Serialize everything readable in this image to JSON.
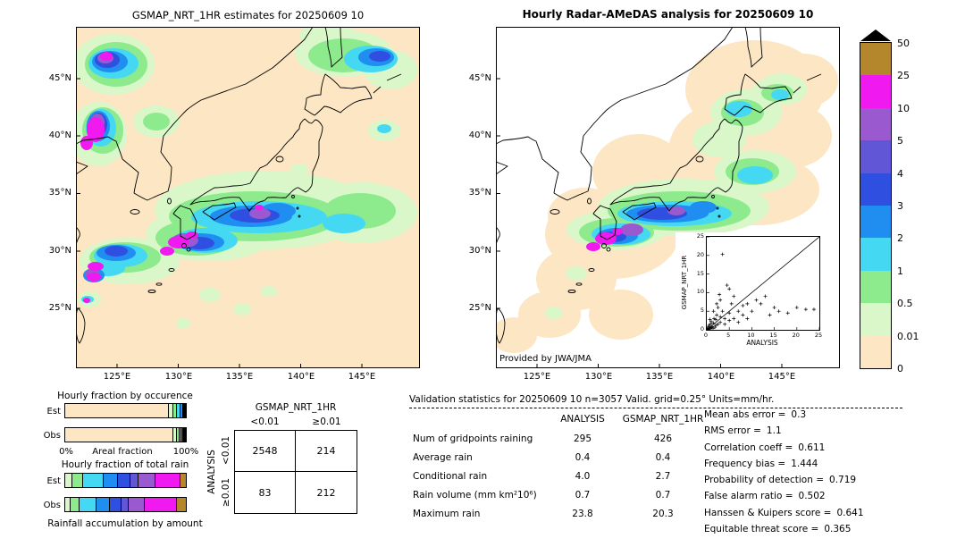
{
  "figure": {
    "left_map": {
      "title": "GSMAP_NRT_1HR estimates for 20250609 10",
      "lat_labels": [
        "45°N",
        "40°N",
        "35°N",
        "30°N",
        "25°N"
      ],
      "lon_labels": [
        "125°E",
        "130°E",
        "135°E",
        "140°E",
        "145°E"
      ]
    },
    "right_map": {
      "title": "Hourly Radar-AMeDAS analysis for 20250609 10",
      "credit": "Provided by JWA/JMA",
      "lat_labels": [
        "45°N",
        "40°N",
        "35°N",
        "30°N",
        "25°N"
      ],
      "lon_labels": [
        "125°E",
        "130°E",
        "135°E",
        "140°E",
        "145°E"
      ]
    }
  },
  "colorbar": {
    "labels": [
      "50",
      "25",
      "10",
      "5",
      "4",
      "3",
      "2",
      "1",
      "0.5",
      "0.01",
      "0"
    ],
    "colors": [
      "#b5872c",
      "#f019f0",
      "#9b59d0",
      "#6157d6",
      "#2e4fe0",
      "#1f8ef0",
      "#45d8f2",
      "#8deb8d",
      "#d9f7c9",
      "#fce6c4"
    ],
    "overflow_color": "#000000"
  },
  "fraction_charts": {
    "occurrence": {
      "title": "Hourly fraction by occurence",
      "axis_left": "0%",
      "axis_label": "Areal fraction",
      "axis_right": "100%",
      "rows": [
        {
          "label": "Est",
          "segments": [
            {
              "level": "0-0.01",
              "color": "#fce6c4",
              "pct": 85
            },
            {
              "level": "0.01-0.5",
              "color": "#d9f7c9",
              "pct": 4
            },
            {
              "level": "0.5-1",
              "color": "#8deb8d",
              "pct": 3
            },
            {
              "level": "1-2",
              "color": "#45d8f2",
              "pct": 3
            },
            {
              "level": "2-3",
              "color": "#1f8ef0",
              "pct": 2
            },
            {
              "level": "3-4",
              "color": "#2e4fe0",
              "pct": 1
            },
            {
              "level": "4-5",
              "color": "#6157d6",
              "pct": 0.7
            },
            {
              "level": "5-10",
              "color": "#9b59d0",
              "pct": 0.6
            },
            {
              "level": "10-25",
              "color": "#f019f0",
              "pct": 0.7
            }
          ]
        },
        {
          "label": "Obs",
          "segments": [
            {
              "level": "0-0.01",
              "color": "#fce6c4",
              "pct": 90
            },
            {
              "level": "0.01-0.5",
              "color": "#d9f7c9",
              "pct": 3
            },
            {
              "level": "0.5-1",
              "color": "#8deb8d",
              "pct": 2
            },
            {
              "level": "1-2",
              "color": "#45d8f2",
              "pct": 2
            },
            {
              "level": "2-3",
              "color": "#1f8ef0",
              "pct": 1.2
            },
            {
              "level": "3-4",
              "color": "#2e4fe0",
              "pct": 0.7
            },
            {
              "level": "4-5",
              "color": "#6157d6",
              "pct": 0.4
            },
            {
              "level": "5-10",
              "color": "#9b59d0",
              "pct": 0.3
            },
            {
              "level": "10-25",
              "color": "#f019f0",
              "pct": 0.4
            }
          ]
        }
      ]
    },
    "total_rain": {
      "title": "Hourly fraction of total rain",
      "caption": "Rainfall accumulation by amount",
      "rows": [
        {
          "label": "Est",
          "segments": [
            {
              "level": "0.01-0.5",
              "color": "#d9f7c9",
              "pct": 5
            },
            {
              "level": "0.5-1",
              "color": "#8deb8d",
              "pct": 9
            },
            {
              "level": "1-2",
              "color": "#45d8f2",
              "pct": 17
            },
            {
              "level": "2-3",
              "color": "#1f8ef0",
              "pct": 12
            },
            {
              "level": "3-4",
              "color": "#2e4fe0",
              "pct": 10
            },
            {
              "level": "4-5",
              "color": "#6157d6",
              "pct": 7
            },
            {
              "level": "5-10",
              "color": "#9b59d0",
              "pct": 14
            },
            {
              "level": "10-25",
              "color": "#f019f0",
              "pct": 21
            },
            {
              "level": "25-50",
              "color": "#b5872c",
              "pct": 5
            }
          ]
        },
        {
          "label": "Obs",
          "segments": [
            {
              "level": "0.01-0.5",
              "color": "#d9f7c9",
              "pct": 4
            },
            {
              "level": "0.5-1",
              "color": "#8deb8d",
              "pct": 7
            },
            {
              "level": "1-2",
              "color": "#45d8f2",
              "pct": 14
            },
            {
              "level": "2-3",
              "color": "#1f8ef0",
              "pct": 11
            },
            {
              "level": "3-4",
              "color": "#2e4fe0",
              "pct": 10
            },
            {
              "level": "4-5",
              "color": "#6157d6",
              "pct": 6
            },
            {
              "level": "5-10",
              "color": "#9b59d0",
              "pct": 13
            },
            {
              "level": "10-25",
              "color": "#f019f0",
              "pct": 27
            },
            {
              "level": "25-50",
              "color": "#b5872c",
              "pct": 8
            }
          ]
        }
      ]
    }
  },
  "contingency": {
    "col_group_label": "GSMAP_NRT_1HR",
    "row_group_label": "ANALYSIS",
    "col_labels": [
      "<0.01",
      "≥0.01"
    ],
    "row_labels": [
      "<0.01",
      "≥0.01"
    ],
    "values": [
      [
        "2548",
        "214"
      ],
      [
        "83",
        "212"
      ]
    ]
  },
  "validation": {
    "title": "Validation statistics for 20250609 10  n=3057 Valid. grid=0.25° Units=mm/hr.",
    "col_headers": [
      "ANALYSIS",
      "GSMAP_NRT_1HR"
    ],
    "rows": [
      {
        "label": "Num of gridpoints raining",
        "analysis": "295",
        "gsmap": "426"
      },
      {
        "label": "Average rain",
        "analysis": "0.4",
        "gsmap": "0.4"
      },
      {
        "label": "Conditional rain",
        "analysis": "4.0",
        "gsmap": "2.7"
      },
      {
        "label": "Rain volume (mm km²10⁶)",
        "analysis": "0.7",
        "gsmap": "0.7"
      },
      {
        "label": "Maximum rain",
        "analysis": "23.8",
        "gsmap": "20.3"
      }
    ],
    "stats": [
      {
        "label": "Mean abs error =",
        "value": "0.3"
      },
      {
        "label": "RMS error =",
        "value": "1.1"
      },
      {
        "label": "Correlation coeff =",
        "value": "0.611"
      },
      {
        "label": "Frequency bias =",
        "value": "1.444"
      },
      {
        "label": "Probability of detection =",
        "value": "0.719"
      },
      {
        "label": "False alarm ratio =",
        "value": "0.502"
      },
      {
        "label": "Hanssen & Kuipers score =",
        "value": "0.641"
      },
      {
        "label": "Equitable threat score =",
        "value": "0.365"
      }
    ]
  },
  "inset_scatter": {
    "xlabel": "ANALYSIS",
    "ylabel": "GSMAP_NRT_1HR",
    "xticks": [
      "0",
      "5",
      "10",
      "15",
      "20",
      "25"
    ],
    "yticks": [
      "0",
      "5",
      "10",
      "15",
      "20",
      "25"
    ],
    "xlim": [
      0,
      25
    ],
    "ylim": [
      0,
      25
    ],
    "points": [
      [
        0.1,
        0.1
      ],
      [
        0.2,
        0.4
      ],
      [
        0.3,
        0.1
      ],
      [
        0.4,
        0.8
      ],
      [
        0.5,
        0.2
      ],
      [
        0.5,
        1.2
      ],
      [
        0.6,
        0.5
      ],
      [
        0.8,
        0.3
      ],
      [
        0.8,
        1.5
      ],
      [
        1,
        0.6
      ],
      [
        1,
        2.2
      ],
      [
        1.2,
        0.9
      ],
      [
        1.4,
        0.4
      ],
      [
        1.5,
        1.8
      ],
      [
        1.6,
        3
      ],
      [
        1.8,
        0.7
      ],
      [
        2,
        1.2
      ],
      [
        2,
        2.8
      ],
      [
        2.2,
        4
      ],
      [
        2.5,
        1.5
      ],
      [
        2.5,
        6
      ],
      [
        3,
        2
      ],
      [
        3,
        3.5
      ],
      [
        3,
        8
      ],
      [
        3.5,
        20.3
      ],
      [
        3.5,
        5
      ],
      [
        4,
        1.5
      ],
      [
        4,
        3
      ],
      [
        4.5,
        12
      ],
      [
        5,
        2.5
      ],
      [
        5,
        4.5
      ],
      [
        5,
        11
      ],
      [
        5.5,
        7
      ],
      [
        6,
        3
      ],
      [
        6,
        9
      ],
      [
        7,
        2
      ],
      [
        7,
        5
      ],
      [
        8,
        4
      ],
      [
        8,
        6.5
      ],
      [
        9,
        3
      ],
      [
        9,
        7
      ],
      [
        10,
        5
      ],
      [
        11,
        8
      ],
      [
        12,
        7
      ],
      [
        13,
        9
      ],
      [
        14,
        4
      ],
      [
        15,
        6
      ],
      [
        16,
        5
      ],
      [
        18,
        4.5
      ],
      [
        20,
        6
      ],
      [
        22,
        5.5
      ],
      [
        23.8,
        5.5
      ],
      [
        2.8,
        9.5
      ],
      [
        1.5,
        5
      ],
      [
        0.7,
        2.8
      ],
      [
        2.2,
        7
      ]
    ]
  },
  "chart_data": [
    {
      "type": "heatmap",
      "name": "gsmap_nrt_1hr_map",
      "title": "GSMAP_NRT_1HR estimates for 20250609 10",
      "x_ticks": [
        "125°E",
        "130°E",
        "135°E",
        "140°E",
        "145°E"
      ],
      "y_ticks": [
        "45°N",
        "40°N",
        "35°N",
        "30°N",
        "25°N"
      ],
      "levels_mm_hr": [
        0,
        0.01,
        0.5,
        1,
        2,
        3,
        4,
        5,
        10,
        25,
        50
      ],
      "level_colors": [
        "#fce6c4",
        "#d9f7c9",
        "#8deb8d",
        "#45d8f2",
        "#1f8ef0",
        "#2e4fe0",
        "#6157d6",
        "#9b59d0",
        "#f019f0",
        "#b5872c"
      ],
      "description": "Satellite precipitation estimate over Japan; rain bands along 30-35N with >10 mm/hr cores near Kyushu, strong cells in NW Sea of Japan and NE of Hokkaido"
    },
    {
      "type": "heatmap",
      "name": "radar_amedas_map",
      "title": "Hourly Radar-AMeDAS analysis for 20250609 10",
      "x_ticks": [
        "125°E",
        "130°E",
        "135°E",
        "140°E",
        "145°E"
      ],
      "y_ticks": [
        "45°N",
        "40°N",
        "35°N",
        "30°N",
        "25°N"
      ],
      "levels_mm_hr": [
        0,
        0.01,
        0.5,
        1,
        2,
        3,
        4,
        5,
        10,
        25,
        50
      ],
      "level_colors": [
        "#fce6c4",
        "#d9f7c9",
        "#8deb8d",
        "#45d8f2",
        "#1f8ef0",
        "#2e4fe0",
        "#6157d6",
        "#9b59d0",
        "#f019f0",
        "#b5872c"
      ],
      "credit": "Provided by JWA/JMA",
      "description": "Radar-gauge analysis limited to radar coverage around Japan; rain band along 30-35N with >10 mm/hr cores near Kyushu"
    },
    {
      "type": "bar",
      "name": "hourly_fraction_by_occurrence",
      "stacked": true,
      "orientation": "horizontal",
      "categories": [
        "Est",
        "Obs"
      ],
      "xlabel": "Areal fraction",
      "xlim_pct": [
        0,
        100
      ],
      "series_levels": [
        "0-0.01",
        "0.01-0.5",
        "0.5-1",
        "1-2",
        "2-3",
        "3-4",
        "4-5",
        "5-10",
        "10-25"
      ],
      "values_pct": [
        [
          85,
          4,
          3,
          3,
          2,
          1,
          0.7,
          0.6,
          0.7
        ],
        [
          90,
          3,
          2,
          2,
          1.2,
          0.7,
          0.4,
          0.3,
          0.4
        ]
      ]
    },
    {
      "type": "bar",
      "name": "hourly_fraction_of_total_rain",
      "stacked": true,
      "orientation": "horizontal",
      "categories": [
        "Est",
        "Obs"
      ],
      "xlabel": "Rainfall accumulation by amount",
      "xlim_pct": [
        0,
        100
      ],
      "series_levels": [
        "0.01-0.5",
        "0.5-1",
        "1-2",
        "2-3",
        "3-4",
        "4-5",
        "5-10",
        "10-25",
        "25-50"
      ],
      "values_pct": [
        [
          5,
          9,
          17,
          12,
          10,
          7,
          14,
          21,
          5
        ],
        [
          4,
          7,
          14,
          11,
          10,
          6,
          13,
          27,
          8
        ]
      ]
    },
    {
      "type": "table",
      "name": "contingency_table",
      "col_group": "GSMAP_NRT_1HR",
      "row_group": "ANALYSIS",
      "columns": [
        "<0.01",
        "≥0.01"
      ],
      "rows": [
        "<0.01",
        "≥0.01"
      ],
      "values": [
        [
          2548,
          214
        ],
        [
          83,
          212
        ]
      ]
    },
    {
      "type": "table",
      "name": "validation_statistics",
      "title": "Validation statistics for 20250609 10  n=3057 Valid. grid=0.25° Units=mm/hr.",
      "columns": [
        "ANALYSIS",
        "GSMAP_NRT_1HR"
      ],
      "rows": [
        [
          "Num of gridpoints raining",
          295,
          426
        ],
        [
          "Average rain",
          0.4,
          0.4
        ],
        [
          "Conditional rain",
          4.0,
          2.7
        ],
        [
          "Rain volume (mm km²10⁶)",
          0.7,
          0.7
        ],
        [
          "Maximum rain",
          23.8,
          20.3
        ]
      ],
      "scores": {
        "Mean abs error": 0.3,
        "RMS error": 1.1,
        "Correlation coeff": 0.611,
        "Frequency bias": 1.444,
        "Probability of detection": 0.719,
        "False alarm ratio": 0.502,
        "Hanssen & Kuipers score": 0.641,
        "Equitable threat score": 0.365
      }
    },
    {
      "type": "scatter",
      "name": "gsmap_vs_analysis_inset",
      "xlabel": "ANALYSIS",
      "ylabel": "GSMAP_NRT_1HR",
      "xlim": [
        0,
        25
      ],
      "ylim": [
        0,
        25
      ],
      "diagonal_line": true,
      "points": [
        [
          0.1,
          0.1
        ],
        [
          0.2,
          0.4
        ],
        [
          0.3,
          0.1
        ],
        [
          0.4,
          0.8
        ],
        [
          0.5,
          0.2
        ],
        [
          0.5,
          1.2
        ],
        [
          0.6,
          0.5
        ],
        [
          0.8,
          0.3
        ],
        [
          0.8,
          1.5
        ],
        [
          1,
          0.6
        ],
        [
          1,
          2.2
        ],
        [
          1.2,
          0.9
        ],
        [
          1.4,
          0.4
        ],
        [
          1.5,
          1.8
        ],
        [
          1.6,
          3
        ],
        [
          1.8,
          0.7
        ],
        [
          2,
          1.2
        ],
        [
          2,
          2.8
        ],
        [
          2.2,
          4
        ],
        [
          2.5,
          1.5
        ],
        [
          2.5,
          6
        ],
        [
          3,
          2
        ],
        [
          3,
          3.5
        ],
        [
          3,
          8
        ],
        [
          3.5,
          20.3
        ],
        [
          3.5,
          5
        ],
        [
          4,
          1.5
        ],
        [
          4,
          3
        ],
        [
          4.5,
          12
        ],
        [
          5,
          2.5
        ],
        [
          5,
          4.5
        ],
        [
          5,
          11
        ],
        [
          5.5,
          7
        ],
        [
          6,
          3
        ],
        [
          6,
          9
        ],
        [
          7,
          2
        ],
        [
          7,
          5
        ],
        [
          8,
          4
        ],
        [
          8,
          6.5
        ],
        [
          9,
          3
        ],
        [
          9,
          7
        ],
        [
          10,
          5
        ],
        [
          11,
          8
        ],
        [
          12,
          7
        ],
        [
          13,
          9
        ],
        [
          14,
          4
        ],
        [
          15,
          6
        ],
        [
          16,
          5
        ],
        [
          18,
          4.5
        ],
        [
          20,
          6
        ],
        [
          22,
          5.5
        ],
        [
          23.8,
          5.5
        ],
        [
          2.8,
          9.5
        ],
        [
          1.5,
          5
        ],
        [
          0.7,
          2.8
        ],
        [
          2.2,
          7
        ]
      ]
    }
  ]
}
